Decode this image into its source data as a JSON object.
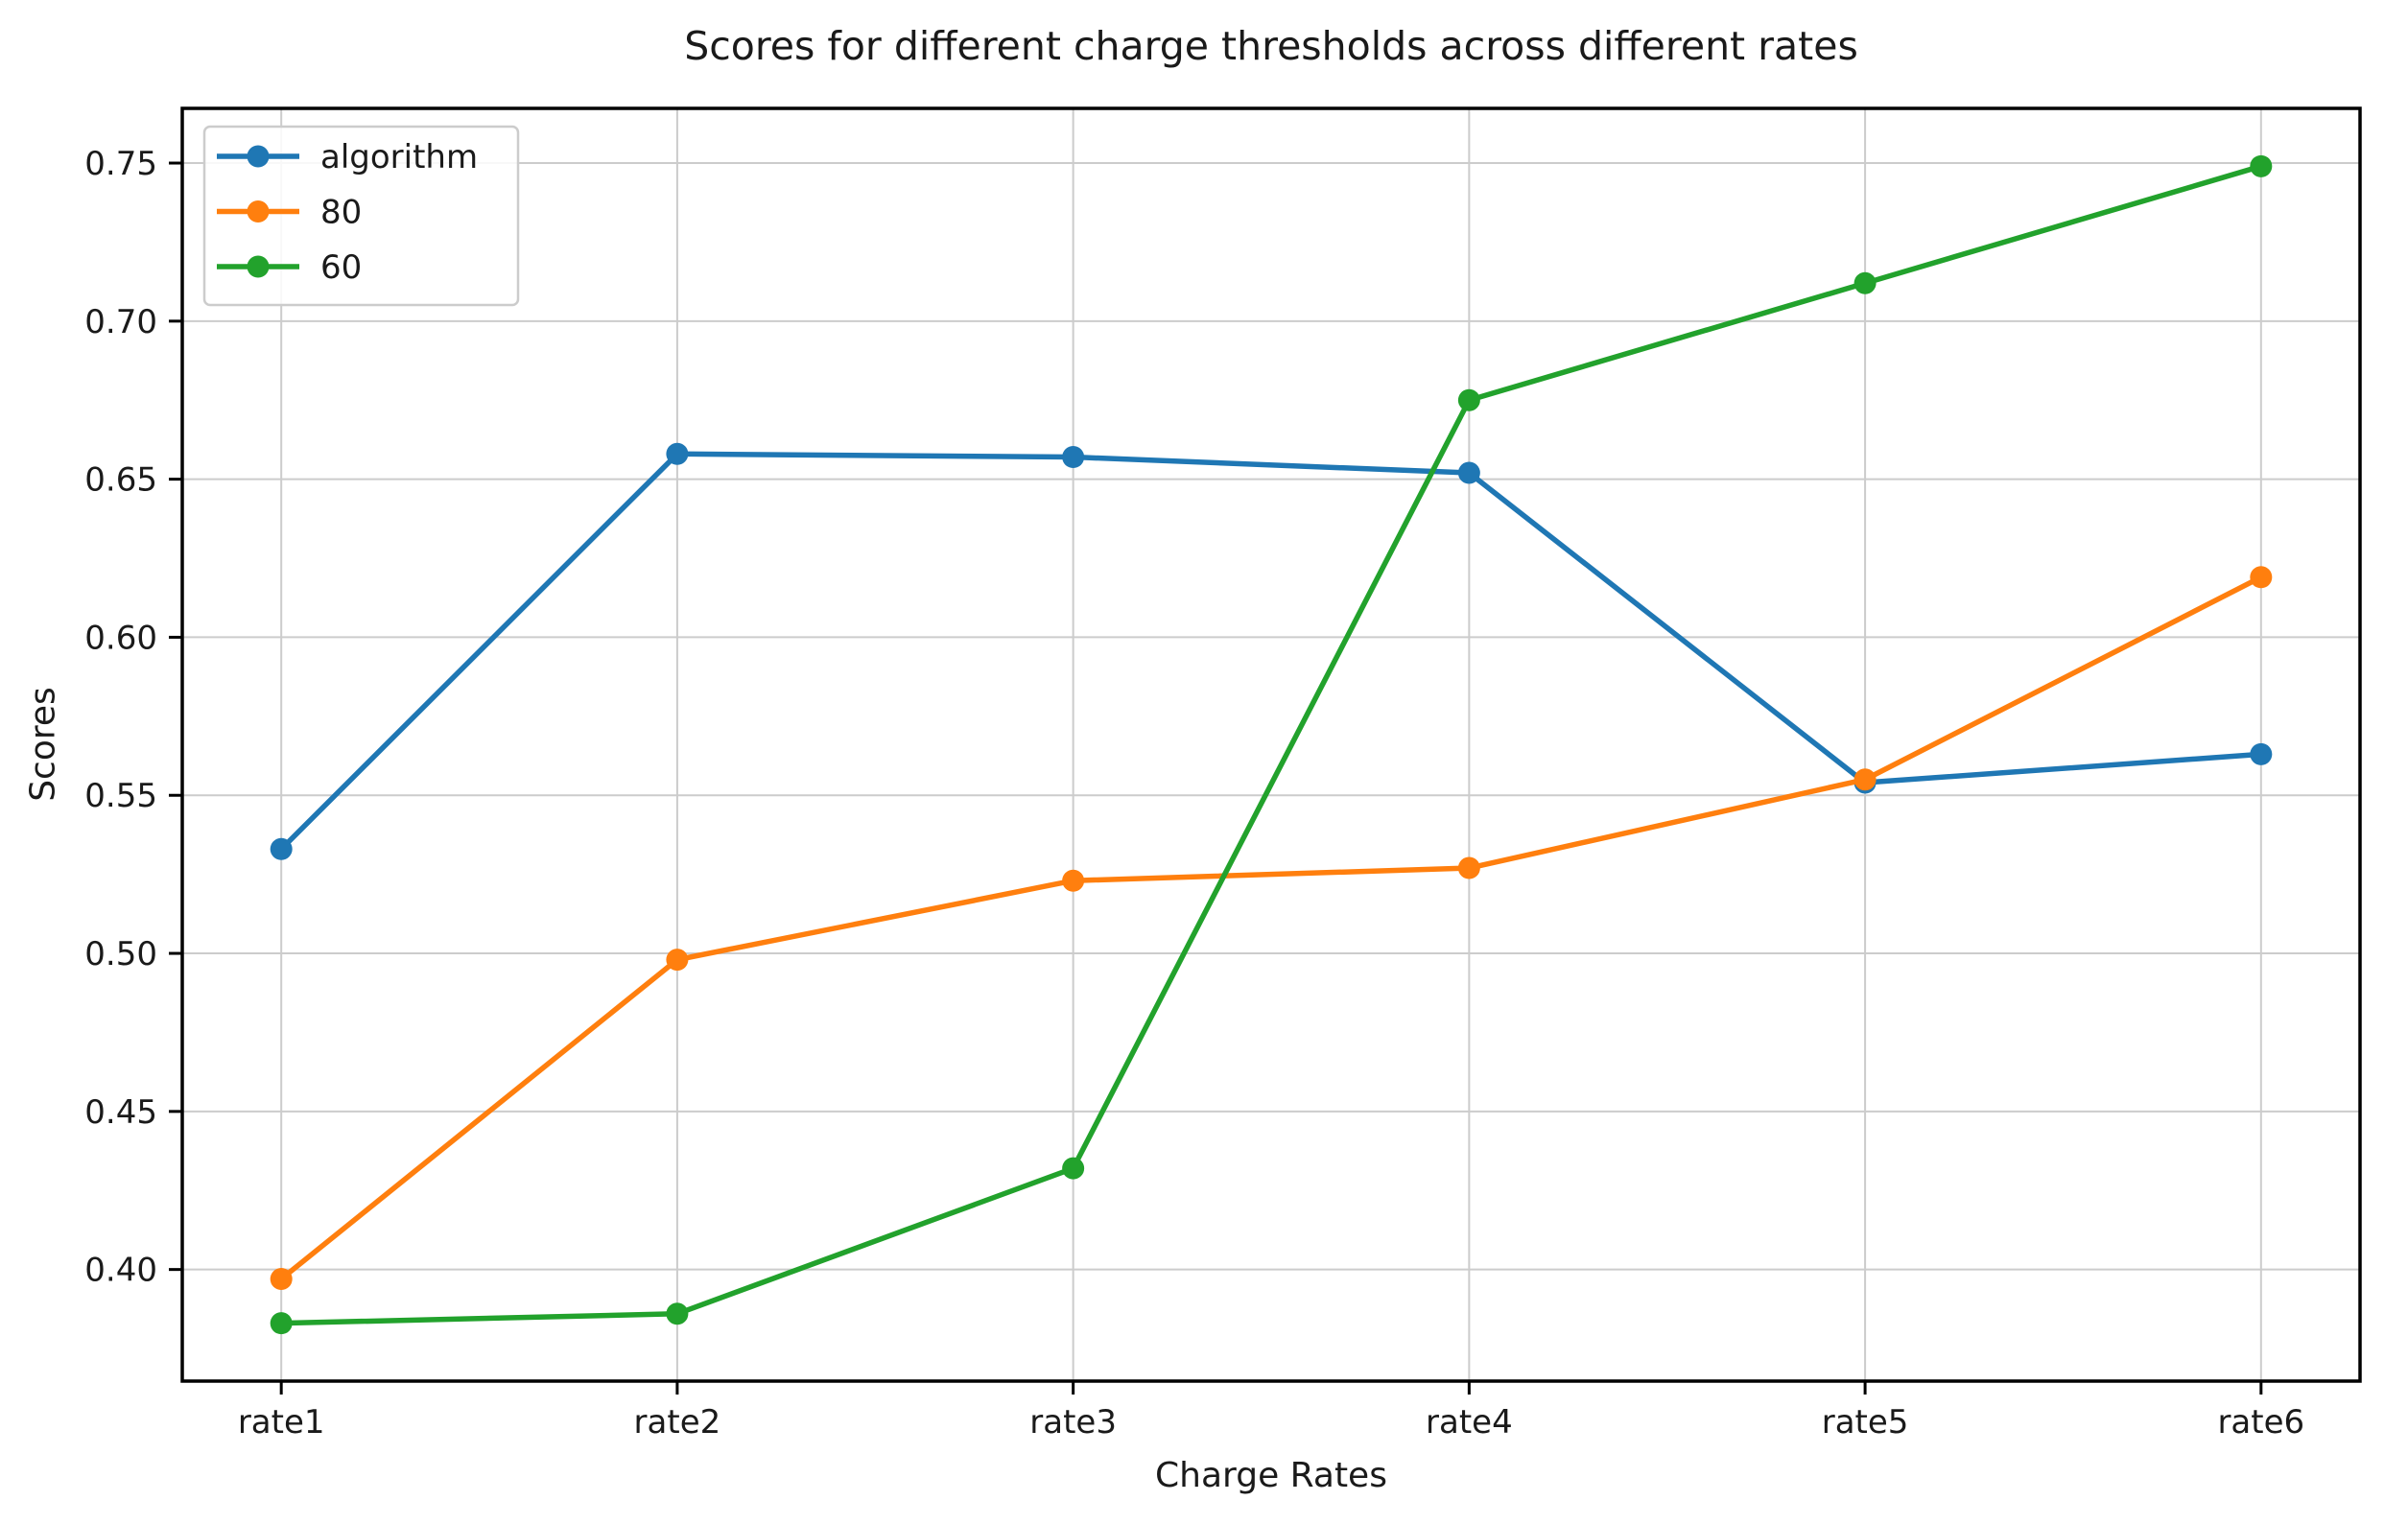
{
  "chart_data": {
    "type": "line",
    "title": "Scores for different charge thresholds across different rates",
    "xlabel": "Charge Rates",
    "ylabel": "Scores",
    "categories": [
      "rate1",
      "rate2",
      "rate3",
      "rate4",
      "rate5",
      "rate6"
    ],
    "series": [
      {
        "name": "algorithm",
        "color": "#1f77b4",
        "values": [
          0.533,
          0.658,
          0.657,
          0.652,
          0.554,
          0.563
        ]
      },
      {
        "name": "80",
        "color": "#ff7f0e",
        "values": [
          0.397,
          0.498,
          0.523,
          0.527,
          0.555,
          0.619
        ]
      },
      {
        "name": "60",
        "color": "#22a22c",
        "values": [
          0.383,
          0.386,
          0.432,
          0.675,
          0.712,
          0.749
        ]
      }
    ],
    "ytick_labels": [
      "0.40",
      "0.45",
      "0.50",
      "0.55",
      "0.60",
      "0.65",
      "0.70",
      "0.75"
    ],
    "ylim": [
      0.3647,
      0.7673
    ],
    "grid": true,
    "grid_color": "#cccccc",
    "spine_color": "#000000",
    "text_color": "#1a1a1a",
    "legend_position": "upper left",
    "marker": "circle"
  }
}
